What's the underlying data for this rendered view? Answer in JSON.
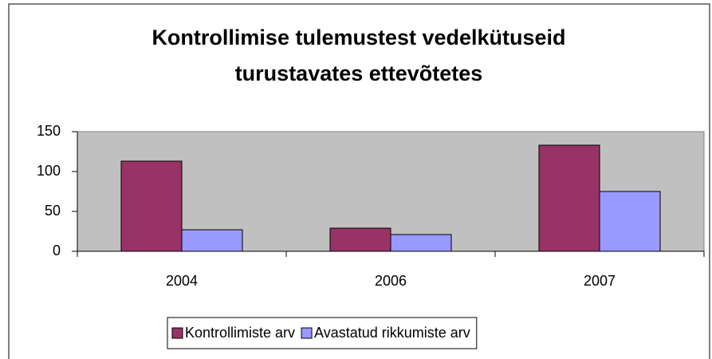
{
  "chart_data": {
    "type": "bar",
    "title": "Kontrollimise tulemustest vedelkütuseid turustavates ettevõtetes",
    "categories": [
      "2004",
      "2006",
      "2007"
    ],
    "series": [
      {
        "name": "Kontrollimiste arv",
        "color": "#993366",
        "values": [
          113,
          29,
          133
        ]
      },
      {
        "name": "Avastatud rikkumiste arv",
        "color": "#9999ff",
        "values": [
          27,
          21,
          75
        ]
      }
    ],
    "ylim": [
      0,
      150
    ],
    "yticks": [
      0,
      50,
      100,
      150
    ],
    "legend": "bottom",
    "plot_background": "#c0c0c0"
  }
}
